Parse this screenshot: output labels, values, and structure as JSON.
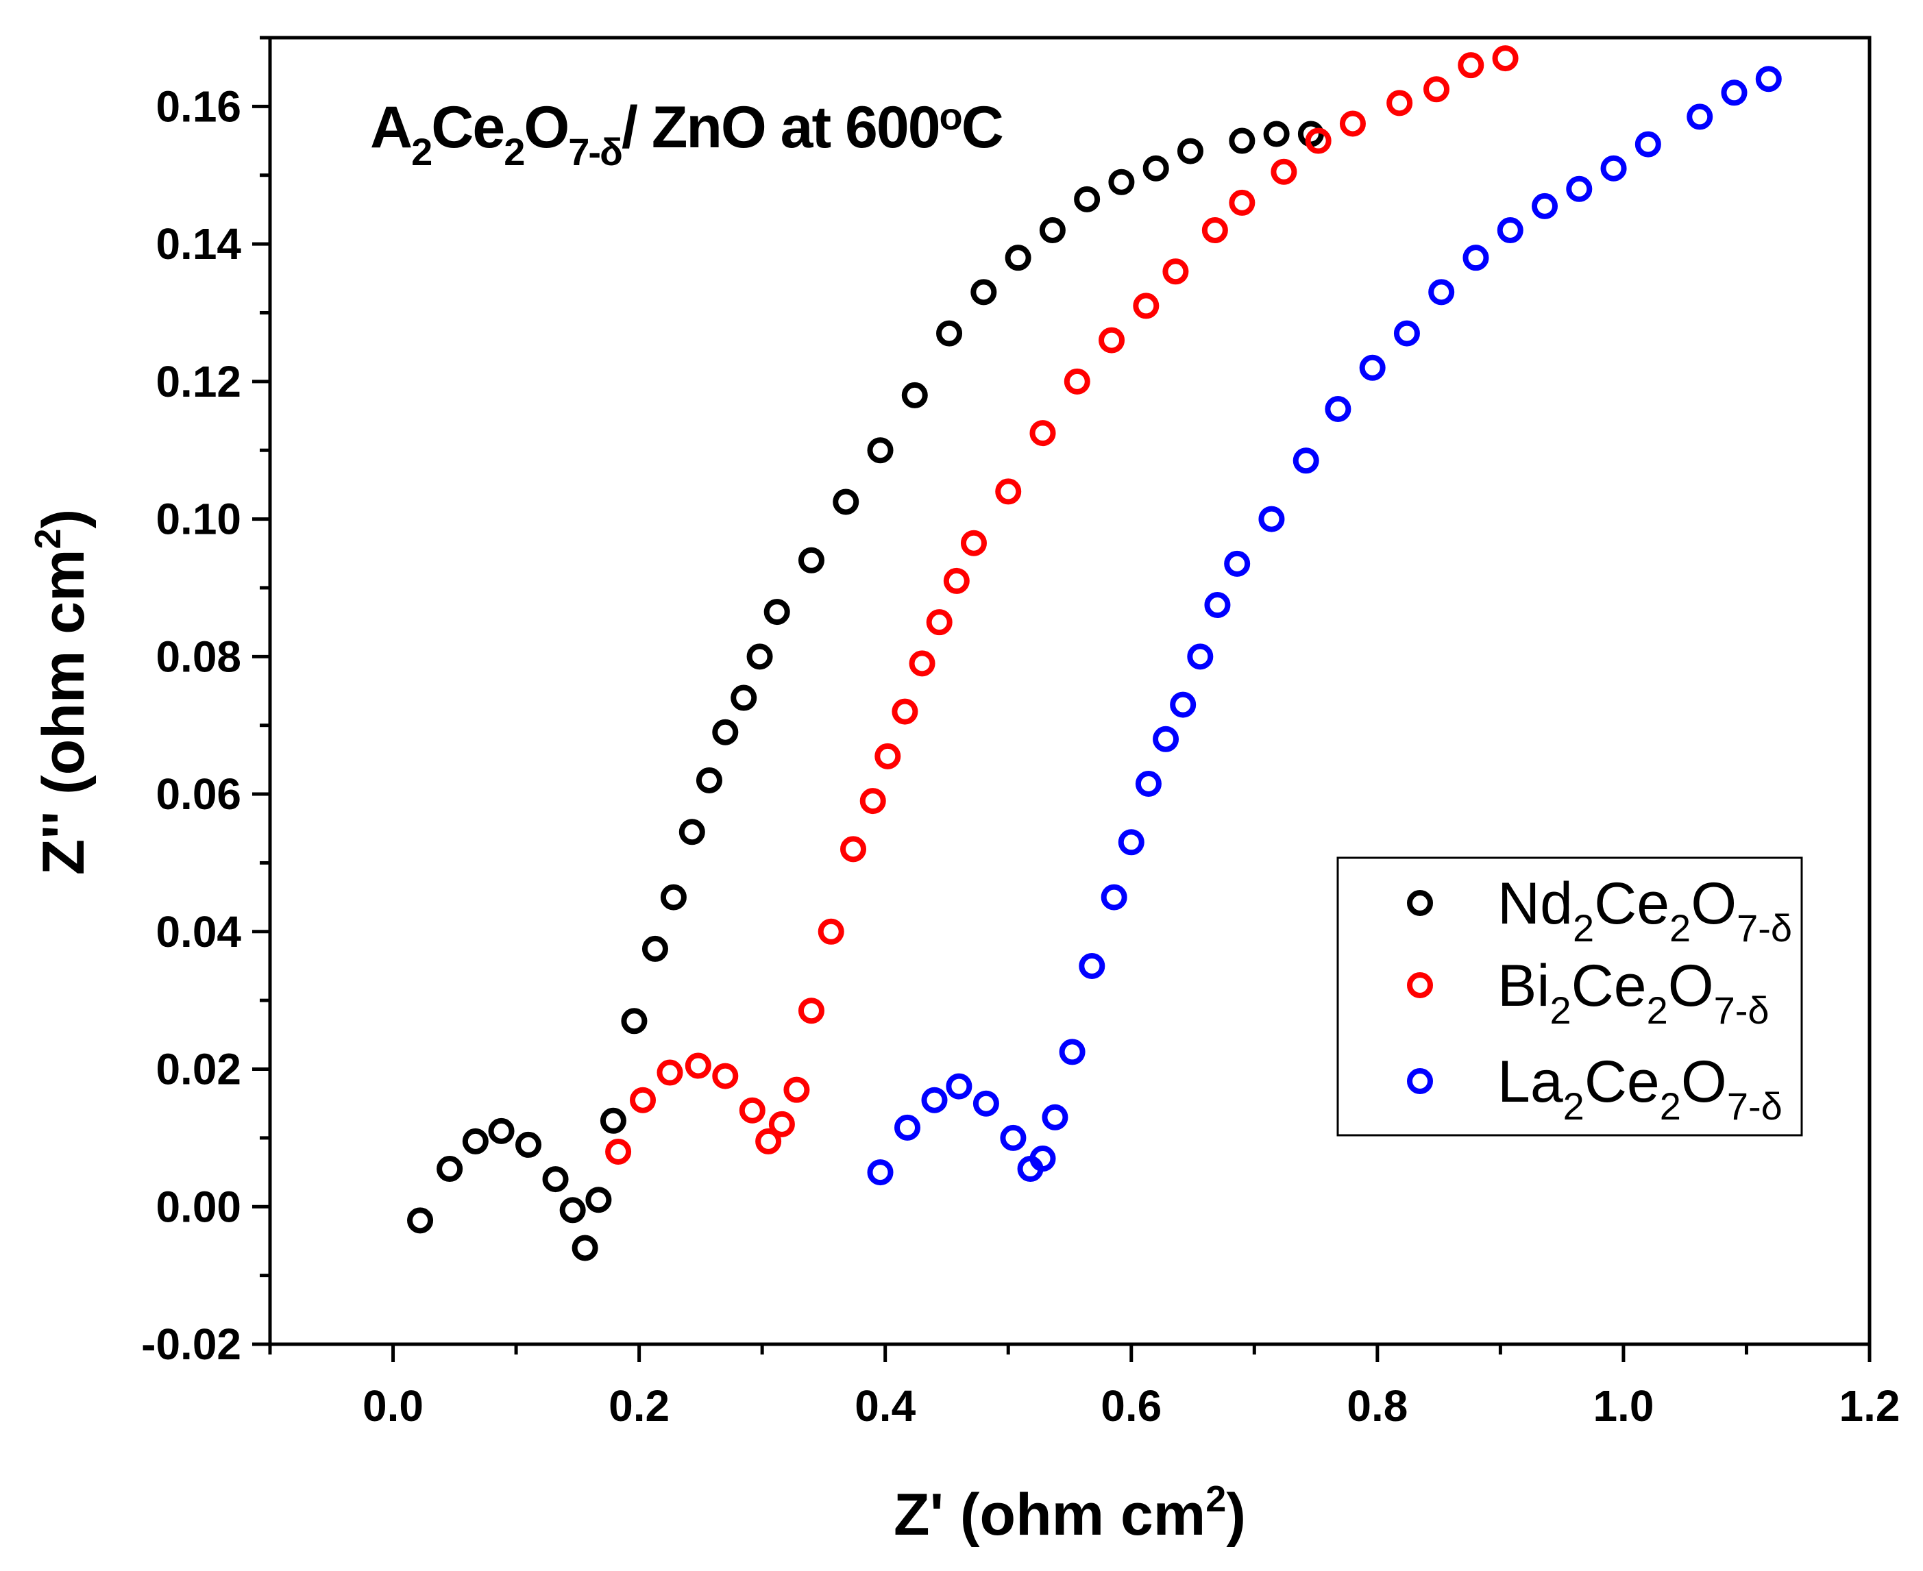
{
  "chart_data": {
    "type": "scatter",
    "title": {
      "parts": [
        {
          "text": "A",
          "sub": "2"
        },
        {
          "text": "Ce",
          "sub": "2"
        },
        {
          "text": "O",
          "sub": "7-δ"
        },
        {
          "text": "/ ZnO at 600"
        },
        {
          "text": "",
          "sup": "o"
        },
        {
          "text": "C"
        }
      ]
    },
    "xlabel": {
      "main": "Z' (ohm cm",
      "sup": "2",
      "end": ")"
    },
    "ylabel": {
      "main": "Z'' (ohm cm",
      "sup": "2",
      "end": ")"
    },
    "xlim": [
      -0.1,
      1.2
    ],
    "ylim": [
      -0.02,
      0.17
    ],
    "xticks": [
      "0.0",
      "0.2",
      "0.4",
      "0.6",
      "0.8",
      "1.0",
      "1.2"
    ],
    "yticks": [
      "-0.02",
      "0.00",
      "0.02",
      "0.04",
      "0.06",
      "0.08",
      "0.10",
      "0.12",
      "0.14",
      "0.16"
    ],
    "legend_position": "middle-right",
    "series": [
      {
        "name": "Nd2Ce2O7-δ",
        "label_parts": [
          {
            "text": "Nd",
            "sub": "2"
          },
          {
            "text": "Ce",
            "sub": "2"
          },
          {
            "text": "O",
            "sub": "7-δ"
          }
        ],
        "color": "#000000",
        "points": [
          [
            0.022,
            -0.002
          ],
          [
            0.046,
            0.0055
          ],
          [
            0.067,
            0.0095
          ],
          [
            0.088,
            0.011
          ],
          [
            0.11,
            0.009
          ],
          [
            0.132,
            0.004
          ],
          [
            0.146,
            -0.0005
          ],
          [
            0.156,
            -0.006
          ],
          [
            0.167,
            0.001
          ],
          [
            0.179,
            0.0125
          ],
          [
            0.196,
            0.027
          ],
          [
            0.213,
            0.0375
          ],
          [
            0.228,
            0.045
          ],
          [
            0.243,
            0.0545
          ],
          [
            0.257,
            0.062
          ],
          [
            0.27,
            0.069
          ],
          [
            0.285,
            0.074
          ],
          [
            0.298,
            0.08
          ],
          [
            0.312,
            0.0865
          ],
          [
            0.34,
            0.094
          ],
          [
            0.368,
            0.1025
          ],
          [
            0.396,
            0.11
          ],
          [
            0.424,
            0.118
          ],
          [
            0.452,
            0.127
          ],
          [
            0.48,
            0.133
          ],
          [
            0.508,
            0.138
          ],
          [
            0.536,
            0.142
          ],
          [
            0.564,
            0.1465
          ],
          [
            0.592,
            0.149
          ],
          [
            0.62,
            0.151
          ],
          [
            0.648,
            0.1535
          ],
          [
            0.69,
            0.155
          ],
          [
            0.718,
            0.156
          ],
          [
            0.746,
            0.156
          ]
        ]
      },
      {
        "name": "Bi2Ce2O7-δ",
        "label_parts": [
          {
            "text": "Bi",
            "sub": "2"
          },
          {
            "text": "Ce",
            "sub": "2"
          },
          {
            "text": "O",
            "sub": "7-δ"
          }
        ],
        "color": "#ff0000",
        "points": [
          [
            0.183,
            0.008
          ],
          [
            0.203,
            0.0155
          ],
          [
            0.225,
            0.0195
          ],
          [
            0.248,
            0.0205
          ],
          [
            0.27,
            0.019
          ],
          [
            0.292,
            0.014
          ],
          [
            0.305,
            0.0095
          ],
          [
            0.316,
            0.012
          ],
          [
            0.328,
            0.017
          ],
          [
            0.34,
            0.0285
          ],
          [
            0.356,
            0.04
          ],
          [
            0.374,
            0.052
          ],
          [
            0.39,
            0.059
          ],
          [
            0.402,
            0.0655
          ],
          [
            0.416,
            0.072
          ],
          [
            0.43,
            0.079
          ],
          [
            0.444,
            0.085
          ],
          [
            0.458,
            0.091
          ],
          [
            0.472,
            0.0965
          ],
          [
            0.5,
            0.104
          ],
          [
            0.528,
            0.1125
          ],
          [
            0.556,
            0.12
          ],
          [
            0.584,
            0.126
          ],
          [
            0.612,
            0.131
          ],
          [
            0.636,
            0.136
          ],
          [
            0.668,
            0.142
          ],
          [
            0.69,
            0.146
          ],
          [
            0.724,
            0.1505
          ],
          [
            0.752,
            0.155
          ],
          [
            0.78,
            0.1575
          ],
          [
            0.818,
            0.1605
          ],
          [
            0.848,
            0.1625
          ],
          [
            0.876,
            0.166
          ],
          [
            0.904,
            0.167
          ]
        ]
      },
      {
        "name": "La2Ce2O7-δ",
        "label_parts": [
          {
            "text": "La",
            "sub": "2"
          },
          {
            "text": "Ce",
            "sub": "2"
          },
          {
            "text": "O",
            "sub": "7-δ"
          }
        ],
        "color": "#0000ff",
        "points": [
          [
            0.396,
            0.005
          ],
          [
            0.418,
            0.0115
          ],
          [
            0.44,
            0.0155
          ],
          [
            0.46,
            0.0175
          ],
          [
            0.482,
            0.015
          ],
          [
            0.504,
            0.01
          ],
          [
            0.518,
            0.0055
          ],
          [
            0.528,
            0.007
          ],
          [
            0.538,
            0.013
          ],
          [
            0.552,
            0.0225
          ],
          [
            0.568,
            0.035
          ],
          [
            0.586,
            0.045
          ],
          [
            0.6,
            0.053
          ],
          [
            0.614,
            0.0615
          ],
          [
            0.628,
            0.068
          ],
          [
            0.642,
            0.073
          ],
          [
            0.656,
            0.08
          ],
          [
            0.67,
            0.0875
          ],
          [
            0.686,
            0.0935
          ],
          [
            0.714,
            0.1
          ],
          [
            0.742,
            0.1085
          ],
          [
            0.768,
            0.116
          ],
          [
            0.796,
            0.122
          ],
          [
            0.824,
            0.127
          ],
          [
            0.852,
            0.133
          ],
          [
            0.88,
            0.138
          ],
          [
            0.908,
            0.142
          ],
          [
            0.936,
            0.1455
          ],
          [
            0.964,
            0.148
          ],
          [
            0.992,
            0.151
          ],
          [
            1.02,
            0.1545
          ],
          [
            1.062,
            0.1585
          ],
          [
            1.09,
            0.162
          ],
          [
            1.118,
            0.164
          ]
        ]
      }
    ]
  }
}
